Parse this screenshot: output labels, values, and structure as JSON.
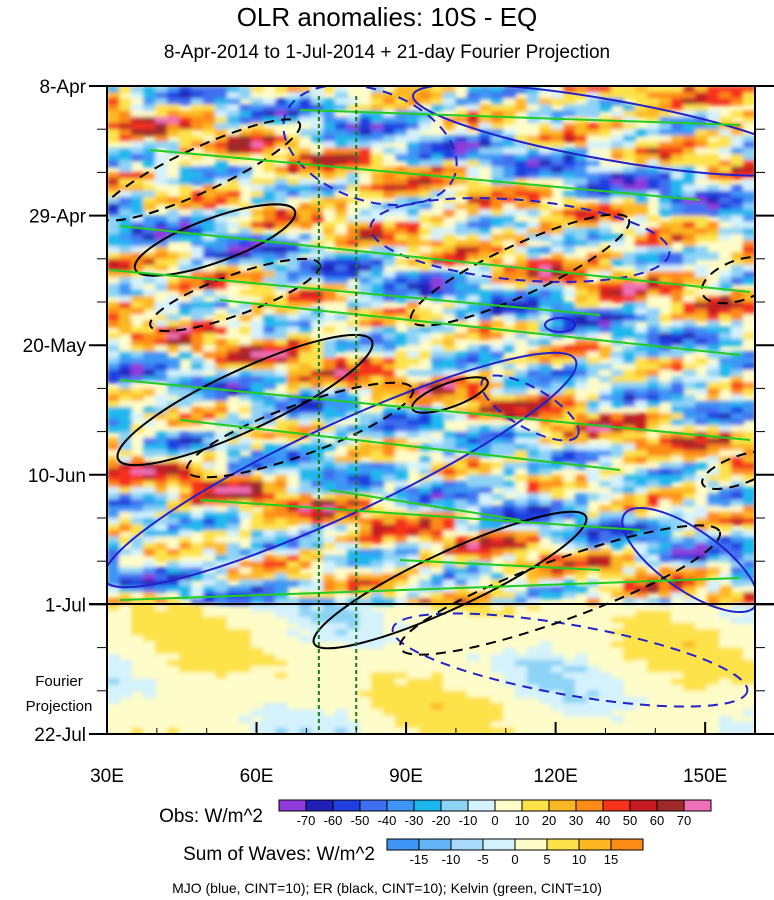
{
  "title": "OLR anomalies: 10S - EQ",
  "subtitle": "8-Apr-2014 to 1-Jul-2014 + 21-day Fourier Projection",
  "footer": "MJO (blue, CINT=10); ER (black, CINT=10); Kelvin (green, CINT=10)",
  "projection_label_line1": "Fourier",
  "projection_label_line2": "Projection",
  "chart_data": {
    "type": "heatmap",
    "title": "OLR anomalies: 10S - EQ",
    "subtitle": "8-Apr-2014 to 1-Jul-2014 + 21-day Fourier Projection",
    "x_axis": {
      "ticks": [
        "30E",
        "60E",
        "90E",
        "120E",
        "150E"
      ],
      "tick_values": [
        30,
        60,
        90,
        120,
        150
      ],
      "range": [
        30,
        160
      ]
    },
    "y_axis": {
      "ticks": [
        "8-Apr",
        "29-Apr",
        "20-May",
        "10-Jun",
        "1-Jul",
        "22-Jul"
      ],
      "range_days": [
        0,
        105
      ],
      "observed_end": "1-Jul",
      "projection_end": "22-Jul"
    },
    "vertical_reference_lines_lon": [
      72.5,
      80
    ],
    "obs_colorbar": {
      "label": "Obs: W/m^2",
      "levels": [
        "-70",
        "-60",
        "-50",
        "-40",
        "-30",
        "-20",
        "-10",
        "0",
        "10",
        "20",
        "30",
        "40",
        "50",
        "60",
        "70"
      ],
      "colors": [
        "#8f3bdc",
        "#2020b8",
        "#1f3fe0",
        "#3f6ff0",
        "#3d96f5",
        "#1ab8ee",
        "#8dd3f6",
        "#d4f2fc",
        "#fefcc8",
        "#fde24a",
        "#fcb822",
        "#fd8b17",
        "#f5331a",
        "#c51a20",
        "#9e2a2a",
        "#f070b8"
      ]
    },
    "waves_colorbar": {
      "label": "Sum of Waves: W/m^2",
      "levels": [
        "-15",
        "-10",
        "-5",
        "0",
        "5",
        "10",
        "15"
      ],
      "colors": [
        "#3d96f5",
        "#64b4f6",
        "#a8d8fa",
        "#d4f2fc",
        "#fefcc8",
        "#fde24a",
        "#fcb822",
        "#fd8b17"
      ]
    },
    "wave_contours": [
      {
        "name": "MJO",
        "color": "#2222cc"
      },
      {
        "name": "ER",
        "color": "#000000"
      },
      {
        "name": "Kelvin",
        "color": "#22cc22"
      }
    ]
  }
}
